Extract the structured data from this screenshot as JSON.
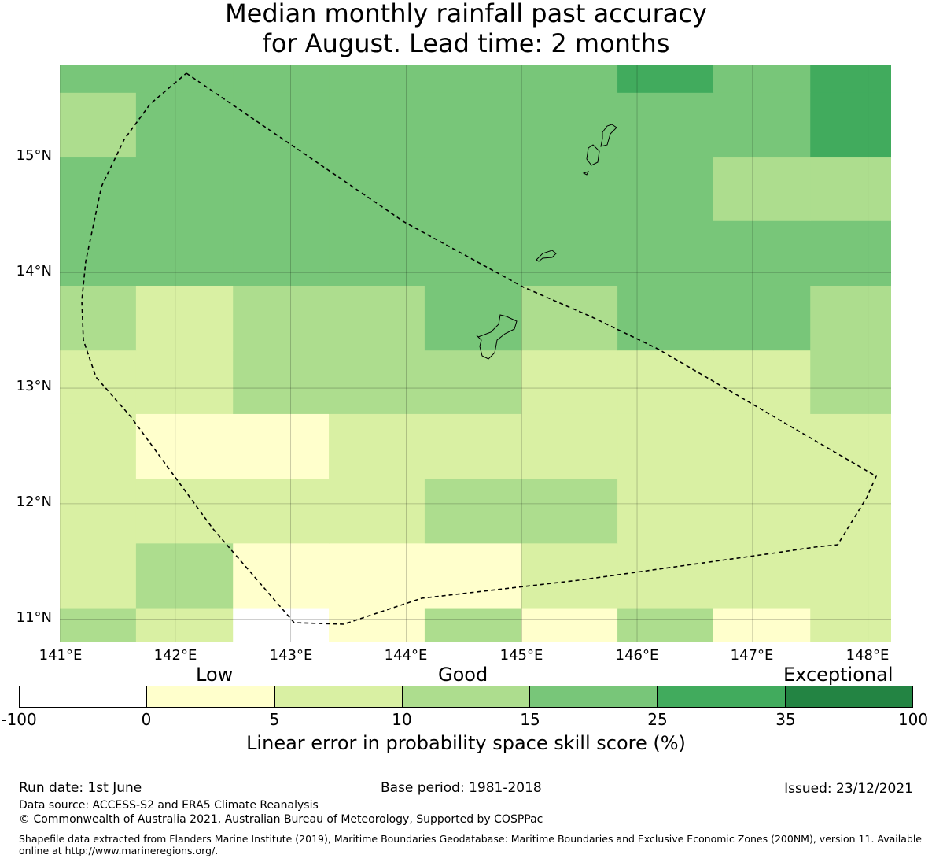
{
  "title": {
    "line1": "Median monthly rainfall past accuracy",
    "line2": "for August. Lead time: 2 months"
  },
  "map": {
    "lon_range": [
      141.0,
      148.2
    ],
    "lat_range": [
      10.8,
      15.8
    ],
    "lat_labels": [
      "15°N",
      "14°N",
      "13°N",
      "12°N",
      "11°N"
    ],
    "lon_labels": [
      "141°E",
      "142°E",
      "143°E",
      "144°E",
      "145°E",
      "146°E",
      "147°E",
      "148°E"
    ],
    "grid_lon_edges": [
      141.0,
      141.66,
      142.5,
      143.33,
      144.16,
      145.0,
      145.83,
      146.66,
      147.5,
      148.2
    ],
    "grid_lat_edges": [
      10.8,
      11.1,
      11.66,
      12.22,
      12.78,
      13.33,
      13.89,
      14.45,
      15.0,
      15.56,
      15.8
    ],
    "skill_rows_south_to_north": [
      [
        3,
        2,
        0,
        1,
        3,
        1,
        3,
        1,
        2
      ],
      [
        2,
        3,
        1,
        1,
        1,
        2,
        2,
        2,
        2
      ],
      [
        2,
        2,
        2,
        2,
        3,
        3,
        2,
        2,
        2
      ],
      [
        2,
        1,
        1,
        2,
        2,
        2,
        2,
        2,
        2
      ],
      [
        2,
        2,
        3,
        3,
        3,
        2,
        2,
        2,
        3
      ],
      [
        3,
        2,
        3,
        3,
        4,
        3,
        4,
        4,
        3
      ],
      [
        4,
        4,
        4,
        4,
        4,
        4,
        4,
        4,
        4
      ],
      [
        4,
        4,
        4,
        4,
        4,
        4,
        4,
        3,
        3
      ],
      [
        3,
        4,
        4,
        4,
        4,
        4,
        4,
        4,
        5
      ],
      [
        4,
        4,
        4,
        4,
        4,
        4,
        5,
        4,
        5
      ]
    ]
  },
  "legend": {
    "categories": [
      "Low",
      "Good",
      "Exceptional"
    ],
    "colors": [
      "#ffffff",
      "#ffffcc",
      "#d9f0a3",
      "#addd8e",
      "#78c679",
      "#41ab5d",
      "#238443"
    ],
    "ticks": [
      "-100",
      "0",
      "5",
      "10",
      "15",
      "25",
      "35",
      "100"
    ],
    "title": "Linear error in probability space skill score (%)"
  },
  "footer": {
    "run_date": "Run date: 1st June",
    "base_period": "Base period: 1981-2018",
    "issued": "Issued: 23/12/2021",
    "data_source": "Data source: ACCESS-S2 and ERA5 Climate Reanalysis",
    "copyright": "© Commonwealth of Australia 2021, Australian Bureau of Meteorology, Supported by COSPPac",
    "shapefile": "Shapefile data extracted from Flanders Marine Institute (2019), Maritime Boundaries Geodatabase: Maritime Boundaries and Exclusive Economic Zones (200NM), version 11. Available online at http://www.marineregions.org/."
  }
}
